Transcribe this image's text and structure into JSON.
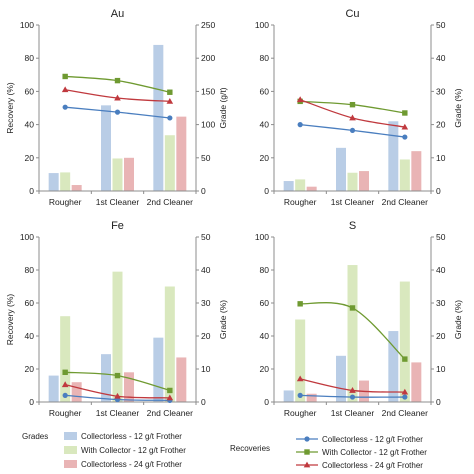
{
  "chart_data": [
    {
      "type": "bar+line",
      "title": "Au",
      "ylabel": "Recovery (%)",
      "y2label": "Grade (g/t)",
      "ylim": [
        0,
        100
      ],
      "y2lim": [
        0,
        250
      ],
      "yticks": [
        0,
        20,
        40,
        60,
        80,
        100
      ],
      "y2ticks": [
        0,
        50,
        100,
        150,
        200,
        250
      ],
      "categories": [
        "Rougher",
        "1st Cleaner",
        "2nd Cleaner"
      ],
      "bars": [
        [
          27,
          28,
          9
        ],
        [
          129,
          49,
          50
        ],
        [
          220,
          84,
          112
        ]
      ],
      "lines": [
        [
          50.5,
          47.5,
          44
        ],
        [
          69,
          66.5,
          59.5
        ],
        [
          61,
          56,
          54
        ]
      ]
    },
    {
      "type": "bar+line",
      "title": "Cu",
      "ylabel": "",
      "y2label": "Grade (%)",
      "ylim": [
        0,
        100
      ],
      "y2lim": [
        0,
        50
      ],
      "yticks": [
        0,
        20,
        40,
        60,
        80,
        100
      ],
      "y2ticks": [
        0,
        10,
        20,
        30,
        40,
        50
      ],
      "categories": [
        "Rougher",
        "1st Cleaner",
        "2nd Cleaner"
      ],
      "bars": [
        [
          3,
          3.5,
          1.3
        ],
        [
          13,
          5.5,
          6
        ],
        [
          21,
          9.5,
          12
        ]
      ],
      "lines": [
        [
          40,
          36.5,
          32.5
        ],
        [
          54,
          52,
          47
        ],
        [
          55,
          44,
          38.5
        ]
      ]
    },
    {
      "type": "bar+line",
      "title": "Fe",
      "ylabel": "Recovery (%)",
      "y2label": "Grade (%)",
      "ylim": [
        0,
        100
      ],
      "y2lim": [
        0,
        50
      ],
      "yticks": [
        0,
        20,
        40,
        60,
        80,
        100
      ],
      "y2ticks": [
        0,
        10,
        20,
        30,
        40,
        50
      ],
      "categories": [
        "Rougher",
        "1st Cleaner",
        "2nd Cleaner"
      ],
      "bars": [
        [
          8,
          26,
          6
        ],
        [
          14.5,
          39.5,
          9
        ],
        [
          19.5,
          35,
          13.5
        ]
      ],
      "lines": [
        [
          4,
          1.5,
          1
        ],
        [
          18,
          16,
          7
        ],
        [
          10.5,
          3.5,
          2.5
        ]
      ]
    },
    {
      "type": "bar+line",
      "title": "S",
      "ylabel": "",
      "y2label": "Grade (%)",
      "ylim": [
        0,
        100
      ],
      "y2lim": [
        0,
        50
      ],
      "yticks": [
        0,
        20,
        40,
        60,
        80,
        100
      ],
      "y2ticks": [
        0,
        10,
        20,
        30,
        40,
        50
      ],
      "categories": [
        "Rougher",
        "1st Cleaner",
        "2nd Cleaner"
      ],
      "bars": [
        [
          3.5,
          25,
          2.5
        ],
        [
          14,
          41.5,
          6.5
        ],
        [
          21.5,
          36.5,
          12
        ]
      ],
      "lines": [
        [
          4,
          3,
          3
        ],
        [
          59.5,
          57,
          26
        ],
        [
          14,
          7,
          6
        ]
      ]
    }
  ],
  "legend": {
    "grades_title": "Grades",
    "recoveries_title": "Recoveries",
    "series": [
      "Collectorless - 12 g/t Frother",
      "With Collector - 12 g/t Frother",
      "Collectorless - 24 g/t Frother"
    ]
  },
  "colors": {
    "bars": [
      "#b9cde6",
      "#d9e8be",
      "#e9b4b5"
    ],
    "lines": [
      "#4a7ebf",
      "#6f9a31",
      "#c0393e"
    ],
    "axis": "#8c8c8c"
  }
}
